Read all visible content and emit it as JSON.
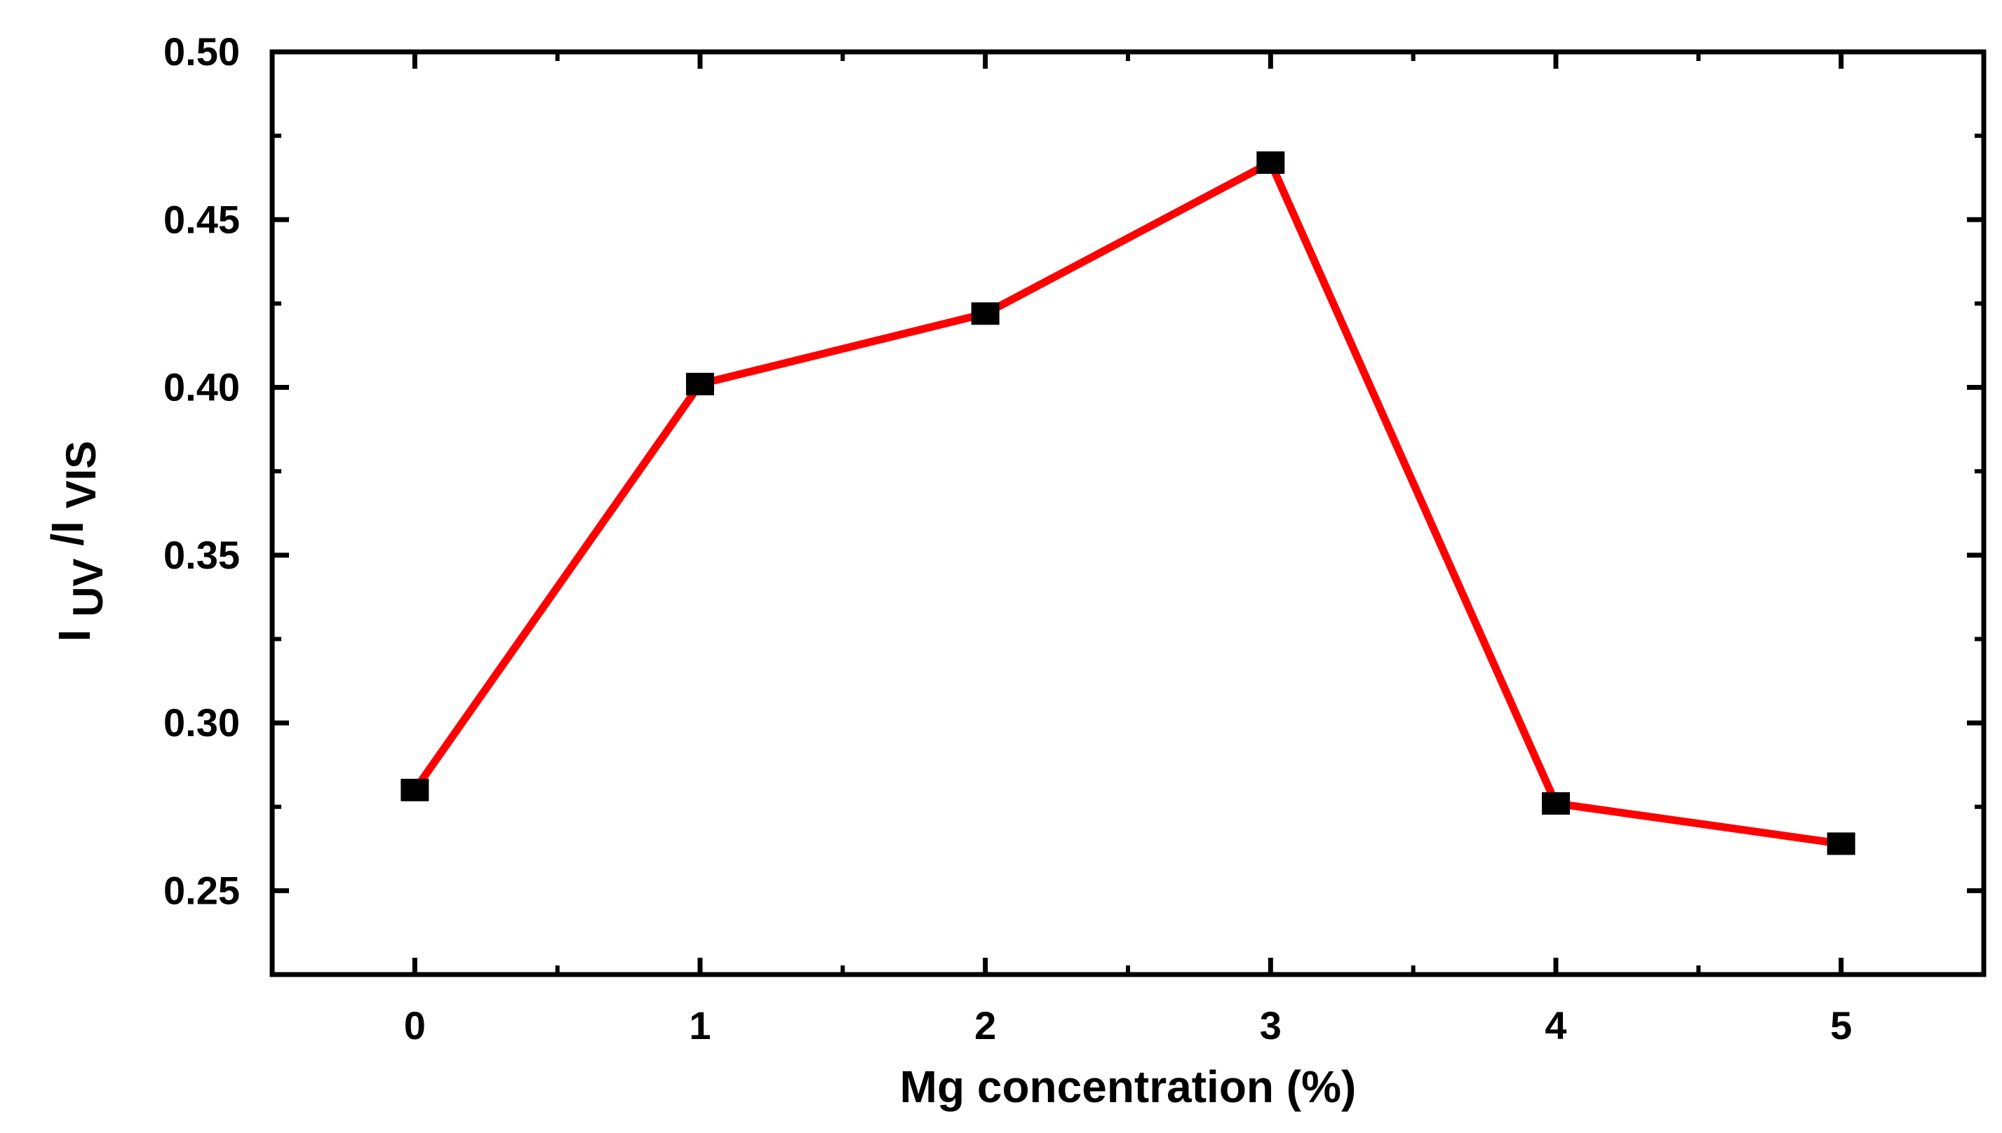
{
  "chart_data": {
    "type": "line",
    "title": "",
    "xlabel": "Mg concentration (%)",
    "ylabel": {
      "main": "I",
      "sub1": "UV",
      "slash": "/I",
      "sub2": "VIS"
    },
    "x": [
      0,
      1,
      2,
      3,
      4,
      5
    ],
    "series": [
      {
        "values": [
          0.28,
          0.401,
          0.422,
          0.467,
          0.276,
          0.264
        ]
      }
    ],
    "xlim": [
      -0.5,
      5.5
    ],
    "ylim": [
      0.225,
      0.5
    ],
    "xticks": [
      0,
      1,
      2,
      3,
      4,
      5
    ],
    "xtick_labels": [
      "0",
      "1",
      "2",
      "3",
      "4",
      "5"
    ],
    "yticks": [
      0.25,
      0.3,
      0.35,
      0.4,
      0.45,
      0.5
    ],
    "ytick_labels": [
      "0.25",
      "0.30",
      "0.35",
      "0.40",
      "0.45",
      "0.50"
    ],
    "grid": false,
    "legend": "none",
    "colors": {
      "line": "#ff0000",
      "marker": "#000000",
      "axes": "#000000"
    }
  }
}
